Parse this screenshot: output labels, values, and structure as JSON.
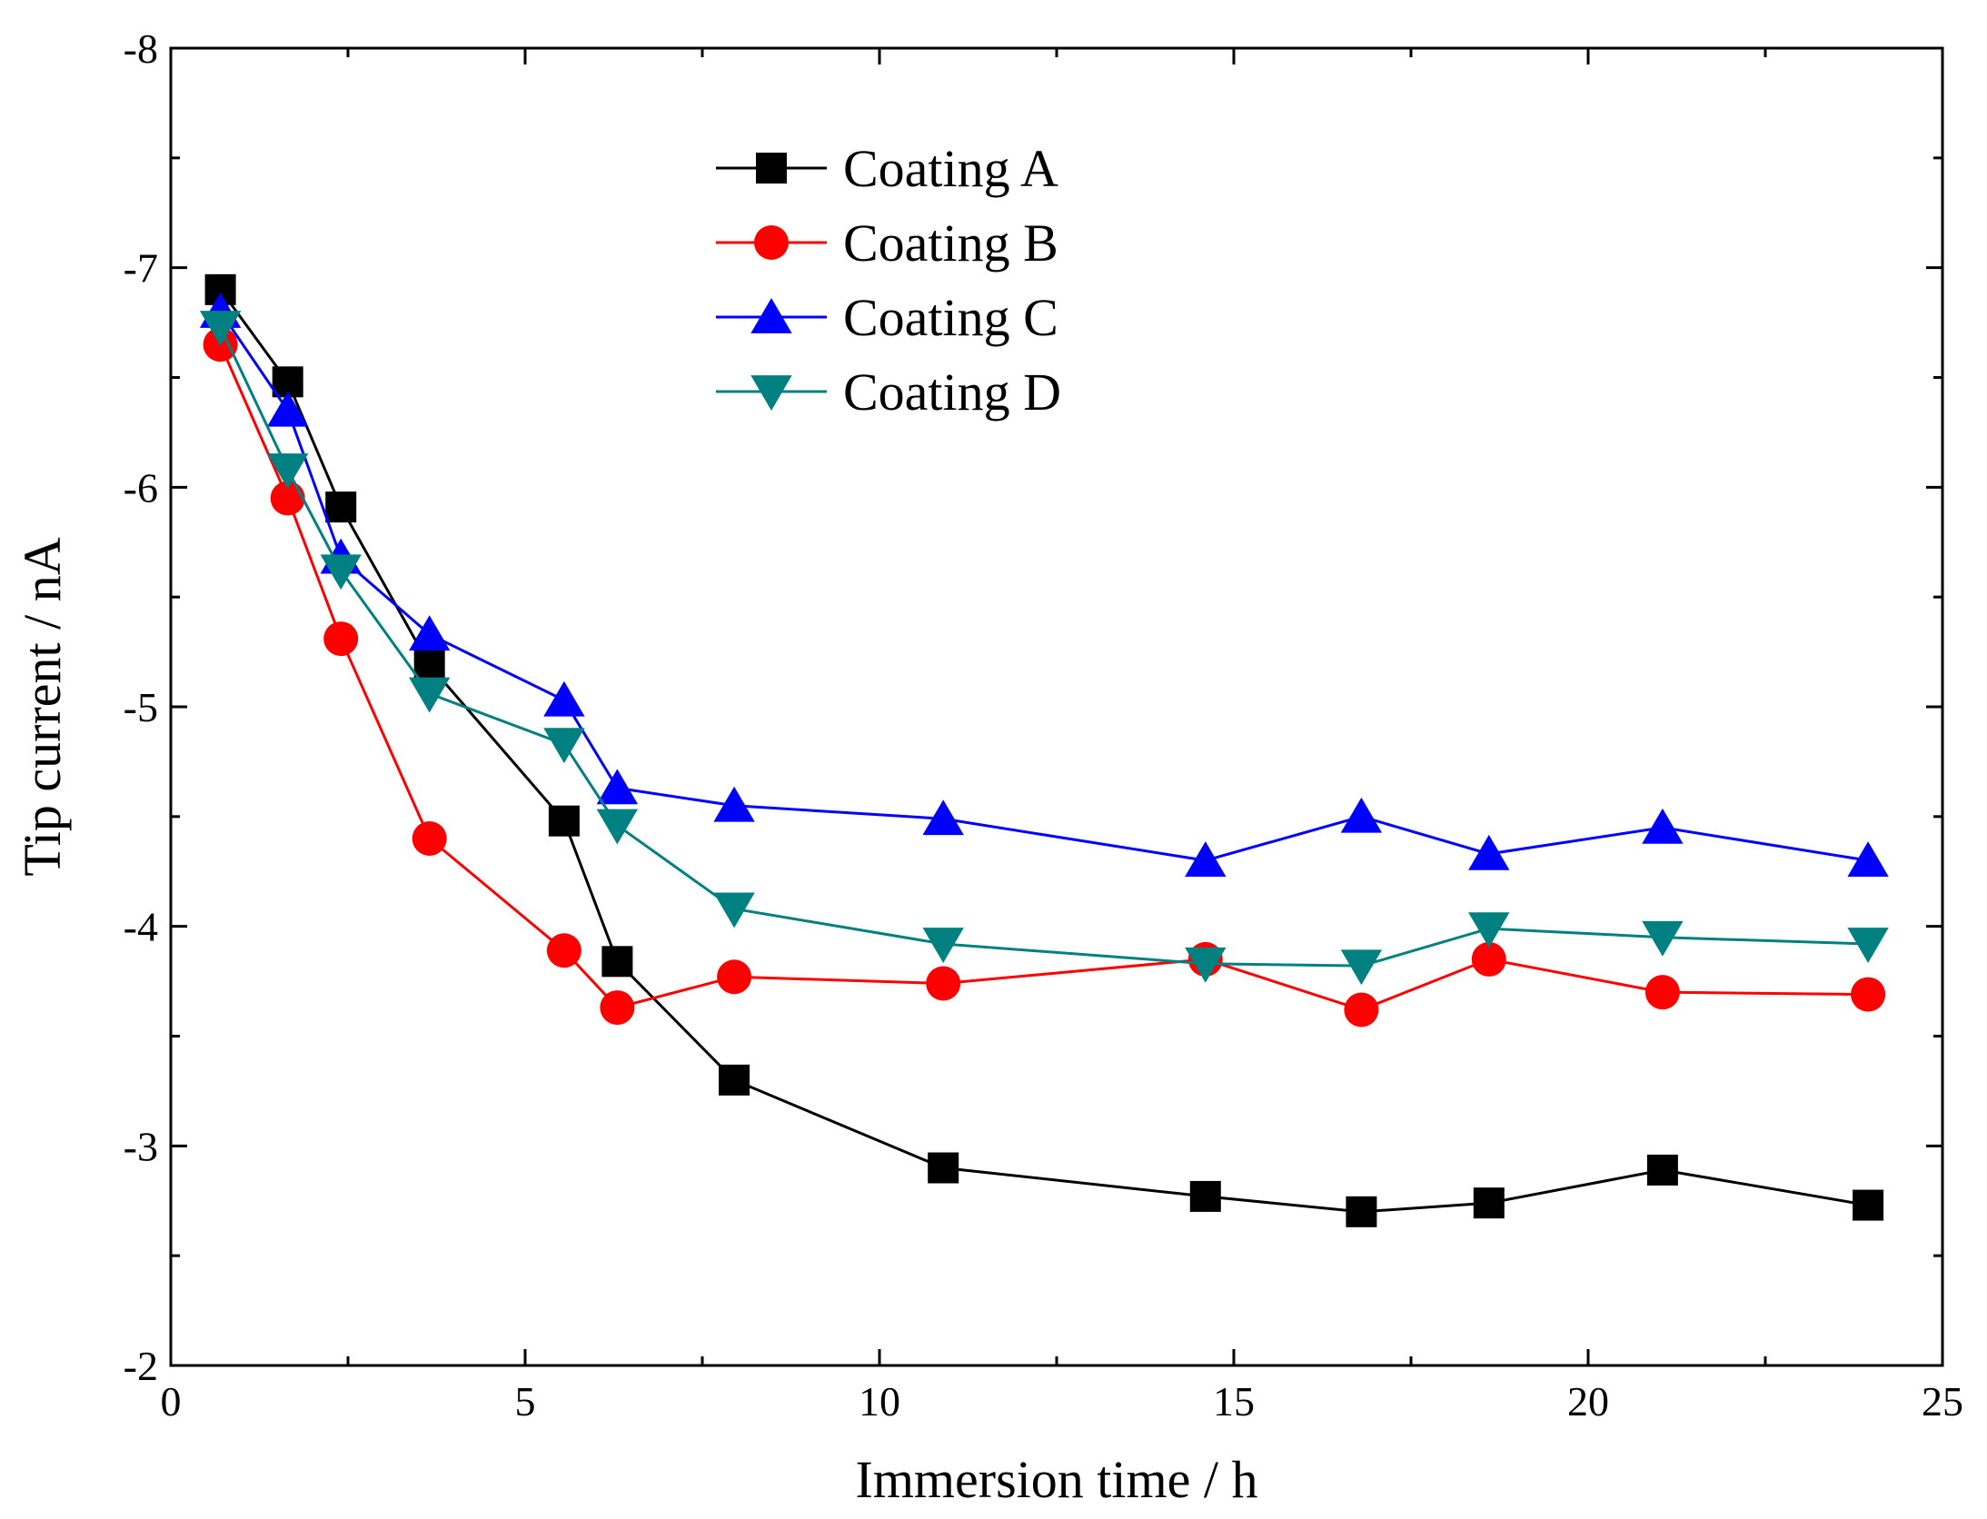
{
  "chart_data": {
    "type": "line",
    "title": "",
    "xlabel": "Immersion time / h",
    "ylabel": "Tip current / nA",
    "xlim": [
      0,
      25
    ],
    "ylim": [
      -2,
      -8
    ],
    "xticks": [
      "0",
      "5",
      "10",
      "15",
      "20",
      "25"
    ],
    "yticks": [
      "-2",
      "-3",
      "-4",
      "-5",
      "-6",
      "-7",
      "-8"
    ],
    "grid": false,
    "legend_position": "top-center",
    "x": [
      0.7,
      1.65,
      2.4,
      3.65,
      5.55,
      6.3,
      7.95,
      10.9,
      14.6,
      16.8,
      18.6,
      21.05,
      23.95
    ],
    "series": [
      {
        "name": "Coating A",
        "color": "#000000",
        "marker": "square",
        "values": [
          -6.9,
          -6.48,
          -5.91,
          -5.19,
          -4.48,
          -3.84,
          -3.3,
          -2.9,
          -2.77,
          -2.7,
          -2.74,
          -2.89,
          -2.73
        ]
      },
      {
        "name": "Coating B",
        "color": "#ff0000",
        "marker": "circle",
        "values": [
          -6.65,
          -5.95,
          -5.31,
          -4.4,
          -3.89,
          -3.63,
          -3.77,
          -3.74,
          -3.85,
          -3.62,
          -3.85,
          -3.7,
          -3.69
        ]
      },
      {
        "name": "Coating C",
        "color": "#0000ff",
        "marker": "triangle-up",
        "values": [
          -6.8,
          -6.35,
          -5.68,
          -5.33,
          -5.03,
          -4.63,
          -4.55,
          -4.49,
          -4.3,
          -4.5,
          -4.33,
          -4.45,
          -4.3
        ]
      },
      {
        "name": "Coating D",
        "color": "#008080",
        "marker": "triangle-down",
        "values": [
          -6.73,
          -6.08,
          -5.62,
          -5.06,
          -4.83,
          -4.46,
          -4.08,
          -3.92,
          -3.83,
          -3.82,
          -3.99,
          -3.95,
          -3.92
        ]
      }
    ]
  }
}
